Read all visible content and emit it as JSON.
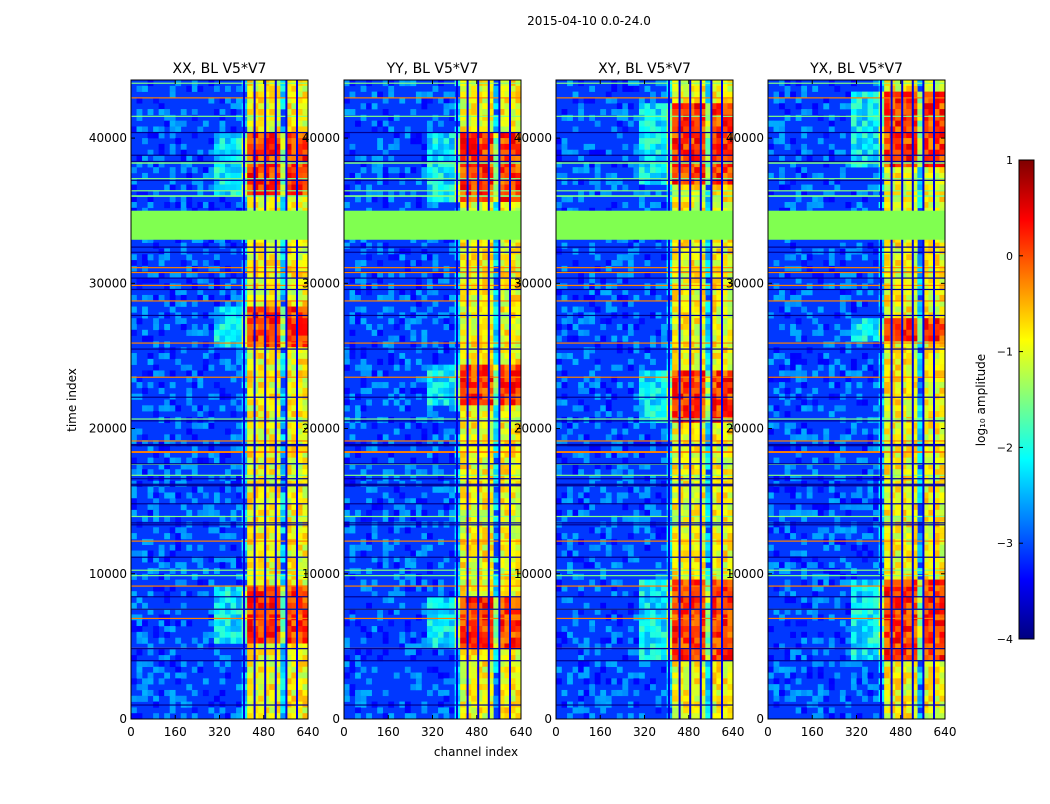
{
  "chart_data": {
    "type": "heatmap",
    "title": "2015-04-10 0.0-24.0",
    "xlabel": "channel index",
    "ylabel": "time index",
    "xlim": [
      0,
      640
    ],
    "ylim": [
      0,
      44000
    ],
    "x_ticks": [
      "0",
      "160",
      "320",
      "480",
      "640"
    ],
    "x_tick_values": [
      0,
      160,
      320,
      480,
      640
    ],
    "y_ticks": [
      "0",
      "10000",
      "20000",
      "30000",
      "40000"
    ],
    "y_tick_values": [
      0,
      10000,
      20000,
      30000,
      40000
    ],
    "panels": [
      {
        "title": "XX, BL V5*V7",
        "signal_start": 405,
        "strong_rows": [
          [
            5200,
            9200
          ],
          [
            25500,
            28500
          ],
          [
            36000,
            40500
          ]
        ]
      },
      {
        "title": "YY, BL V5*V7",
        "signal_start": 405,
        "strong_rows": [
          [
            5000,
            8500
          ],
          [
            21500,
            24500
          ],
          [
            35500,
            40500
          ]
        ]
      },
      {
        "title": "XY, BL V5*V7",
        "signal_start": 405,
        "strong_rows": [
          [
            4000,
            9500
          ],
          [
            20500,
            24000
          ],
          [
            37000,
            42500
          ]
        ]
      },
      {
        "title": "YX, BL V5*V7",
        "signal_start": 405,
        "strong_rows": [
          [
            4000,
            9500
          ],
          [
            26000,
            27500
          ],
          [
            38000,
            43000
          ]
        ]
      }
    ],
    "gap_rows": [
      33000,
      35000
    ],
    "colorbar": {
      "label": "log₁₀ amplitude",
      "range": [
        -4,
        1
      ],
      "tick_values": [
        1,
        0,
        -1,
        -2,
        -3,
        -4
      ],
      "tick_labels": [
        "1",
        "0",
        "−1",
        "−2",
        "−3",
        "−4"
      ],
      "colormap": "jet",
      "stops": [
        "#00007f",
        "#0000ff",
        "#0080ff",
        "#00ffff",
        "#80ff80",
        "#ffff00",
        "#ff8000",
        "#ff0000",
        "#7f0000"
      ]
    }
  }
}
